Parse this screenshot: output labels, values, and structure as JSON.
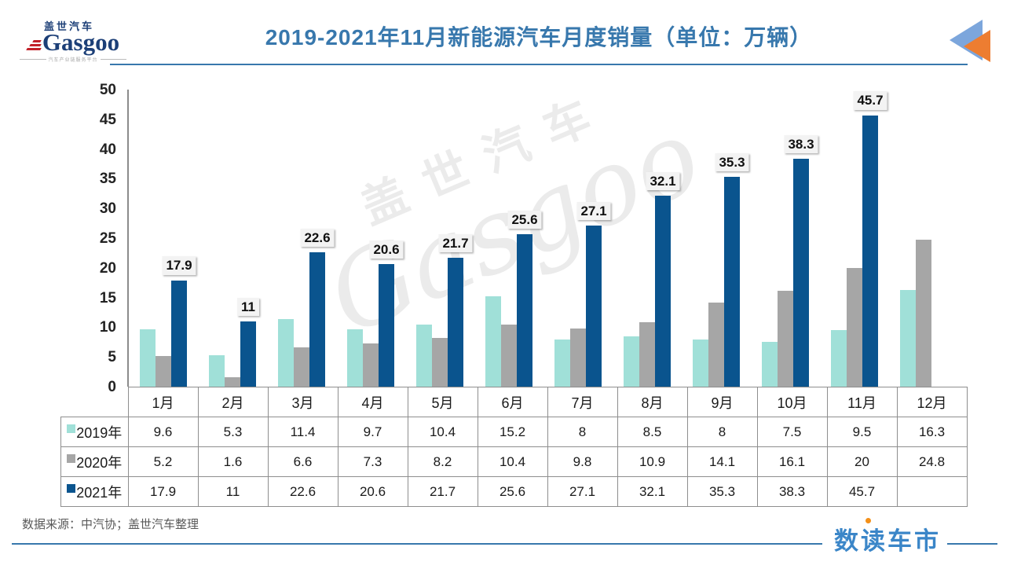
{
  "header": {
    "logo": {
      "brand_cn": "盖世汽车",
      "brand_en": "Gasgoo",
      "tagline": "汽车产业链服务平台"
    },
    "title": "2019-2021年11月新能源汽车月度销量（单位：万辆）"
  },
  "watermark": {
    "brand_cn": "盖世汽车",
    "brand_en": "Gasgoo"
  },
  "chart_data": {
    "type": "bar",
    "title": "2019-2021年11月新能源汽车月度销量（单位：万辆）",
    "unit": "万辆",
    "categories": [
      "1月",
      "2月",
      "3月",
      "4月",
      "5月",
      "6月",
      "7月",
      "8月",
      "9月",
      "10月",
      "11月",
      "12月"
    ],
    "series": [
      {
        "name": "2019年",
        "color": "#a0e0d8",
        "values": [
          9.6,
          5.3,
          11.4,
          9.7,
          10.4,
          15.2,
          8,
          8.5,
          8,
          7.5,
          9.5,
          16.3
        ],
        "display": [
          "9.6",
          "5.3",
          "11.4",
          "9.7",
          "10.4",
          "15.2",
          "8",
          "8.5",
          "8",
          "7.5",
          "9.5",
          "16.3"
        ],
        "data_labels": false
      },
      {
        "name": "2020年",
        "color": "#a6a6a6",
        "values": [
          5.2,
          1.6,
          6.6,
          7.3,
          8.2,
          10.4,
          9.8,
          10.9,
          14.1,
          16.1,
          20,
          24.8
        ],
        "display": [
          "5.2",
          "1.6",
          "6.6",
          "7.3",
          "8.2",
          "10.4",
          "9.8",
          "10.9",
          "14.1",
          "16.1",
          "20",
          "24.8"
        ],
        "data_labels": false
      },
      {
        "name": "2021年",
        "color": "#0a548e",
        "values": [
          17.9,
          11,
          22.6,
          20.6,
          21.7,
          25.6,
          27.1,
          32.1,
          35.3,
          38.3,
          45.7,
          null
        ],
        "display": [
          "17.9",
          "11",
          "22.6",
          "20.6",
          "21.7",
          "25.6",
          "27.1",
          "32.1",
          "35.3",
          "38.3",
          "45.7",
          ""
        ],
        "data_labels": true
      }
    ],
    "ylim": [
      0,
      50
    ],
    "y_ticks": [
      0,
      5,
      10,
      15,
      20,
      25,
      30,
      35,
      40,
      45,
      50
    ],
    "grid": false,
    "legend_position": "attached-data-table-left"
  },
  "footer": {
    "source": "数据来源：中汽协；盖世汽车整理",
    "brand": "数读车市"
  },
  "colors": {
    "title_blue": "#3878ad",
    "bar_2019": "#a0e0d8",
    "bar_2020": "#a6a6a6",
    "bar_2021": "#0a548e",
    "icon_blue": "#7ca6dc",
    "icon_orange": "#ed7d31",
    "footer_brand_blue": "#3b86c8",
    "footer_dot_orange": "#f39019"
  }
}
